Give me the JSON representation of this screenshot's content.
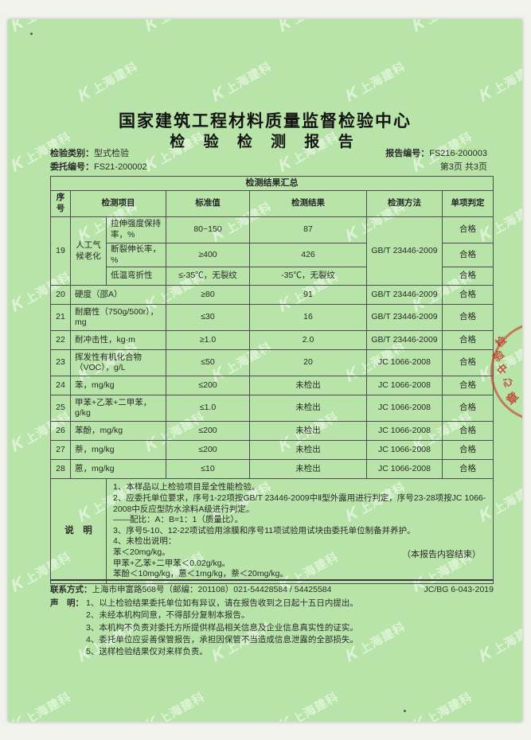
{
  "header": {
    "title_line1": "国家建筑工程材料质量监督检验中心",
    "title_line2": "检 验 检 测 报 告"
  },
  "meta": {
    "type_label": "检验类别：",
    "type_value": "型式检验",
    "consign_label": "委托编号：",
    "consign_value": "FS21-200002",
    "report_label": "报告编号：",
    "report_value": "FS216-200003",
    "page_info": "第3页 共3页"
  },
  "table": {
    "title": "检测结果汇总",
    "col_no": "序号",
    "col_item": "检测项目",
    "col_std": "标准值",
    "col_result": "检测结果",
    "col_method": "检测方法",
    "col_verdict": "单项判定",
    "group19": {
      "no": "19",
      "item": "人工气候老化",
      "method": "GB/T 23446-2009",
      "sub0": {
        "name": "拉伸强度保持率，%",
        "std": "80~150",
        "result": "87",
        "verdict": "合格"
      },
      "sub1": {
        "name": "断裂伸长率，%",
        "std": "≥400",
        "result": "426",
        "verdict": "合格"
      },
      "sub2": {
        "name": "低温弯折性",
        "std": "≤-35℃，无裂纹",
        "result": "-35℃，无裂纹",
        "verdict": "合格"
      }
    },
    "rows": [
      {
        "no": "20",
        "item": "硬度（邵A）",
        "std": "≥80",
        "result": "91",
        "method": "GB/T 23446-2009",
        "verdict": "合格"
      },
      {
        "no": "21",
        "item": "耐磨性（750g/500r），mg",
        "std": "≤30",
        "result": "16",
        "method": "GB/T 23446-2009",
        "verdict": "合格"
      },
      {
        "no": "22",
        "item": "耐冲击性，kg·m",
        "std": "≥1.0",
        "result": "2.0",
        "method": "GB/T 23446-2009",
        "verdict": "合格"
      },
      {
        "no": "23",
        "item": "挥发性有机化合物（VOC），g/L",
        "std": "≤50",
        "result": "20",
        "method": "JC 1066-2008",
        "verdict": "合格"
      },
      {
        "no": "24",
        "item": "苯，mg/kg",
        "std": "≤200",
        "result": "未检出",
        "method": "JC 1066-2008",
        "verdict": "合格"
      },
      {
        "no": "25",
        "item": "甲苯+乙苯+二甲苯，g/kg",
        "std": "≤1.0",
        "result": "未检出",
        "method": "JC 1066-2008",
        "verdict": "合格"
      },
      {
        "no": "26",
        "item": "苯酚，mg/kg",
        "std": "≤200",
        "result": "未检出",
        "method": "JC 1066-2008",
        "verdict": "合格"
      },
      {
        "no": "27",
        "item": "萘，mg/kg",
        "std": "≤200",
        "result": "未检出",
        "method": "JC 1066-2008",
        "verdict": "合格"
      },
      {
        "no": "28",
        "item": "蒽，mg/kg",
        "std": "≤10",
        "result": "未检出",
        "method": "JC 1066-2008",
        "verdict": "合格"
      }
    ]
  },
  "notes": {
    "label": "说　明",
    "lines": [
      "1、本样品以上检验项目是全性能检验。",
      "2、应委托单位要求，序号1-22项按GB/T 23446-2009中Ⅱ型外露用进行判定，序号23-28项按JC 1066-2008中反应型防水涂料A级进行判定。",
      "——配比：A：B=1：1（质量比）。",
      "3、序号5-10、12-22项试验用涂膜和序号11项试验用试块由委托单位制备并养护。",
      "4、未检出说明：",
      "苯＜20mg/kg。",
      "甲苯+乙苯+二甲苯＜0.02g/kg。",
      "苯酚＜10mg/kg，蒽＜1mg/kg，萘＜20mg/kg。"
    ]
  },
  "end_note": "（本报告内容结束）",
  "footer": {
    "contact_label": "联系方式：",
    "contact_value": "上海市申富路568号（邮编：201108）021-54428584 / 54425584",
    "doc_code": "JC/BG 6-043-2019",
    "statement_label": "声　明：",
    "statements": [
      "1、以上检验结果委托单位如有异议，请在报告收到之日起十五日内提出。",
      "2、未经本机构同意，不得部分复制本报告。",
      "3、本机构不负责对委托方所提供样品相关信息及企业信息真实性的证实。",
      "4、委托单位应妥善保管报告，承担因保管不当造成信息泄露的全部损失。",
      "5、送样检验结果仅对来样负责。"
    ]
  },
  "watermark": {
    "logo": "K",
    "text": "上海建科"
  },
  "stamp": {
    "chars": [
      "检",
      "验",
      "中",
      "心",
      "章"
    ]
  },
  "colors": {
    "paper_green": "#b9e4a9",
    "seal_red": "#bc2c1e",
    "ink": "#2c2c2c"
  }
}
